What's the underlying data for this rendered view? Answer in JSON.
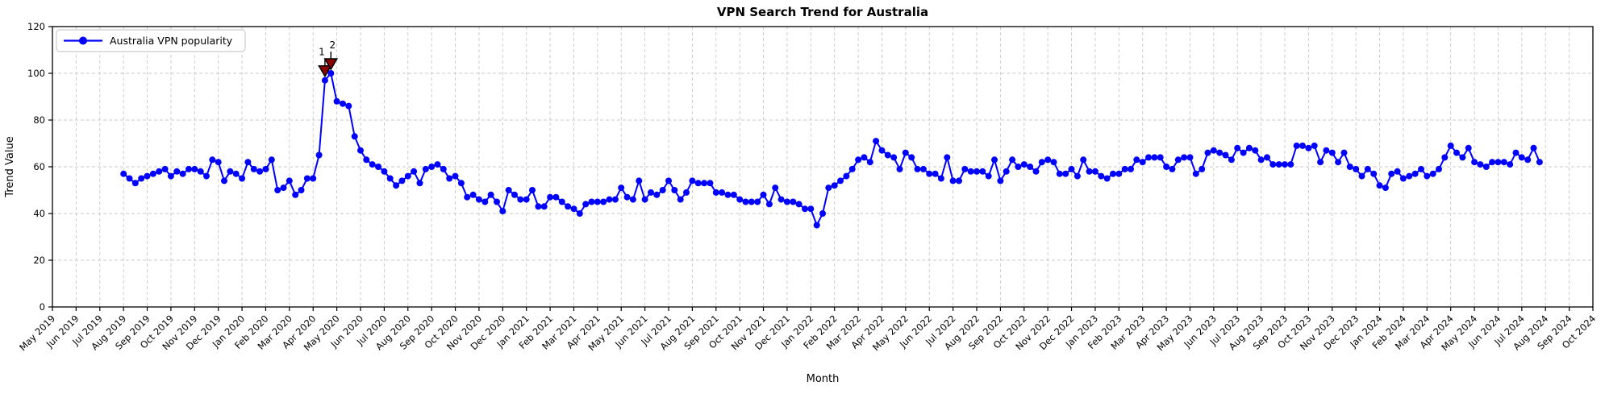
{
  "chart_data": {
    "type": "line",
    "title": "VPN Search Trend for Australia",
    "xlabel": "Month",
    "ylabel": "Trend Value",
    "grid": true,
    "grid_style": "dashed",
    "legend_position": "upper-left",
    "ylim": [
      0,
      120
    ],
    "yticks": [
      0,
      20,
      40,
      60,
      80,
      100,
      120
    ],
    "x_tick_labels": [
      "May 2019",
      "Jun 2019",
      "Jul 2019",
      "Aug 2019",
      "Sep 2019",
      "Oct 2019",
      "Nov 2019",
      "Dec 2019",
      "Jan 2020",
      "Feb 2020",
      "Mar 2020",
      "Apr 2020",
      "May 2020",
      "Jun 2020",
      "Jul 2020",
      "Aug 2020",
      "Sep 2020",
      "Oct 2020",
      "Nov 2020",
      "Dec 2020",
      "Jan 2021",
      "Feb 2021",
      "Mar 2021",
      "Apr 2021",
      "May 2021",
      "Jun 2021",
      "Jul 2021",
      "Aug 2021",
      "Sep 2021",
      "Oct 2021",
      "Nov 2021",
      "Dec 2021",
      "Jan 2022",
      "Feb 2022",
      "Mar 2022",
      "Apr 2022",
      "May 2022",
      "Jun 2022",
      "Jul 2022",
      "Aug 2022",
      "Sep 2022",
      "Oct 2022",
      "Nov 2022",
      "Dec 2022",
      "Jan 2023",
      "Feb 2023",
      "Mar 2023",
      "Apr 2023",
      "May 2023",
      "Jun 2023",
      "Jul 2023",
      "Aug 2023",
      "Sep 2023",
      "Oct 2023",
      "Nov 2023",
      "Dec 2023",
      "Jan 2024",
      "Feb 2024",
      "Mar 2024",
      "Apr 2024",
      "May 2024",
      "Jun 2024",
      "Jul 2024",
      "Aug 2024",
      "Sep 2024",
      "Oct 2024"
    ],
    "series": [
      {
        "name": "Australia VPN popularity",
        "color": "#0000ff",
        "marker": "circle",
        "start_month_label": "Aug 2019",
        "start_month_index": 3,
        "points_per_month": 4,
        "values": [
          57,
          55,
          53,
          55,
          56,
          57,
          58,
          59,
          56,
          58,
          57,
          59,
          59,
          58,
          56,
          63,
          62,
          54,
          58,
          57,
          55,
          62,
          59,
          58,
          59,
          63,
          50,
          51,
          54,
          48,
          50,
          55,
          55,
          65,
          97,
          100,
          88,
          87,
          86,
          73,
          67,
          63,
          61,
          60,
          58,
          55,
          52,
          54,
          56,
          58,
          53,
          59,
          60,
          61,
          59,
          55,
          56,
          53,
          47,
          48,
          46,
          45,
          48,
          45,
          41,
          50,
          48,
          46,
          46,
          50,
          43,
          43,
          47,
          47,
          45,
          43,
          42,
          40,
          44,
          45,
          45,
          45,
          46,
          46,
          51,
          47,
          46,
          54,
          46,
          49,
          48,
          50,
          54,
          50,
          46,
          49,
          54,
          53,
          53,
          53,
          49,
          49,
          48,
          48,
          46,
          45,
          45,
          45,
          48,
          44,
          51,
          46,
          45,
          45,
          44,
          42,
          42,
          35,
          40,
          51,
          52,
          54,
          56,
          59,
          63,
          64,
          62,
          71,
          67,
          65,
          64,
          59,
          66,
          64,
          59,
          59,
          57,
          57,
          55,
          64,
          54,
          54,
          59,
          58,
          58,
          58,
          56,
          63,
          54,
          58,
          63,
          60,
          61,
          60,
          58,
          62,
          63,
          62,
          57,
          57,
          59,
          56,
          63,
          58,
          58,
          56,
          55,
          57,
          57,
          59,
          59,
          63,
          62,
          64,
          64,
          64,
          60,
          59,
          63,
          64,
          64,
          57,
          59,
          66,
          67,
          66,
          65,
          63,
          68,
          66,
          68,
          67,
          63,
          64,
          61,
          61,
          61,
          61,
          69,
          69,
          68,
          69,
          62,
          67,
          66,
          62,
          66,
          60,
          59,
          56,
          59,
          57,
          52,
          51,
          57,
          58,
          55,
          56,
          57,
          59,
          56,
          57,
          59,
          64,
          69,
          66,
          64,
          68,
          62,
          61,
          60,
          62,
          62,
          62,
          61,
          66,
          64,
          63,
          68,
          62
        ]
      }
    ],
    "legend": [
      {
        "label": "Australia VPN popularity",
        "color": "#0000ff"
      }
    ],
    "annotations": [
      {
        "label": "1",
        "point_index": 34,
        "value": 97,
        "marker": "triangle-down",
        "marker_color": "#8b0000",
        "edge_color": "#000000",
        "text_color": "#8b0000"
      },
      {
        "label": "2",
        "point_index": 35,
        "value": 100,
        "marker": "triangle-down",
        "marker_color": "#8b0000",
        "edge_color": "#000000",
        "text_color": "#8b0000"
      }
    ],
    "colors": {
      "line": "#0000ff",
      "grid": "#c9c9c9",
      "spine": "#000000",
      "background": "#ffffff",
      "annotation": "#8b0000"
    }
  }
}
